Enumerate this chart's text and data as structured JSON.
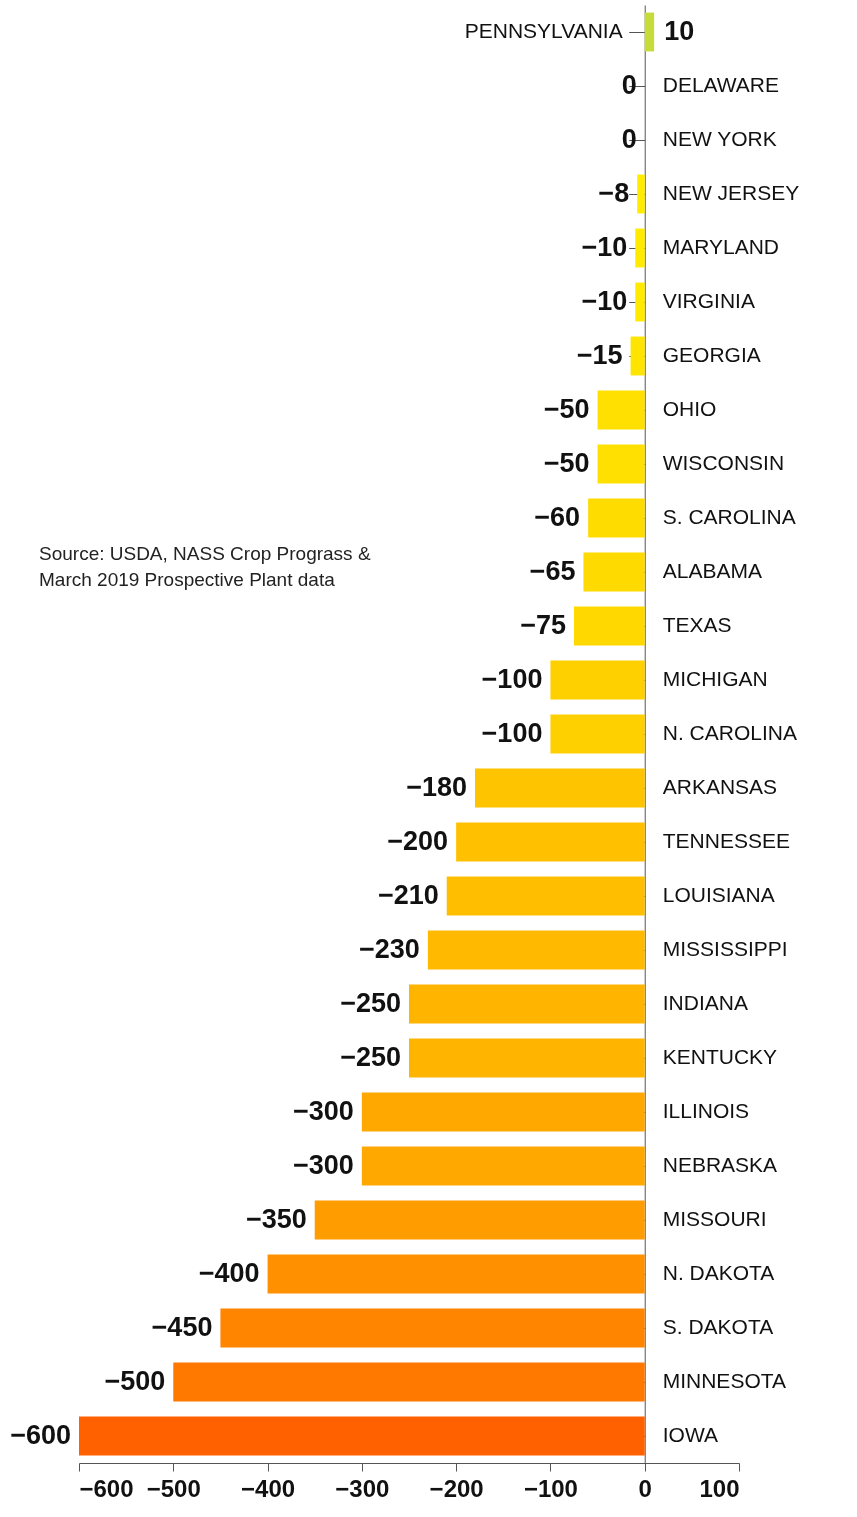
{
  "chart_data": {
    "type": "bar",
    "orientation": "horizontal",
    "categories": [
      "PENNSYLVANIA",
      "DELAWARE",
      "NEW YORK",
      "NEW JERSEY",
      "MARYLAND",
      "VIRGINIA",
      "GEORGIA",
      "OHIO",
      "WISCONSIN",
      "S. CAROLINA",
      "ALABAMA",
      "TEXAS",
      "MICHIGAN",
      "N. CAROLINA",
      "ARKANSAS",
      "TENNESSEE",
      "LOUISIANA",
      "MISSISSIPPI",
      "INDIANA",
      "KENTUCKY",
      "ILLINOIS",
      "NEBRASKA",
      "MISSOURI",
      "N. DAKOTA",
      "S. DAKOTA",
      "MINNESOTA",
      "IOWA"
    ],
    "values": [
      10,
      0,
      0,
      -8,
      -10,
      -10,
      -15,
      -50,
      -50,
      -60,
      -65,
      -75,
      -100,
      -100,
      -180,
      -200,
      -210,
      -230,
      -250,
      -250,
      -300,
      -300,
      -350,
      -400,
      -450,
      -500,
      -600
    ],
    "colors": [
      "#c6dc3a",
      "#fff200",
      "#fff200",
      "#ffec00",
      "#ffea00",
      "#ffea00",
      "#ffe400",
      "#ffe000",
      "#ffe000",
      "#ffdc00",
      "#ffda00",
      "#ffd800",
      "#ffd000",
      "#ffd000",
      "#ffc400",
      "#ffc000",
      "#ffbe00",
      "#ffba00",
      "#ffb400",
      "#ffb400",
      "#ffa800",
      "#ffa800",
      "#ff9c00",
      "#ff9000",
      "#ff8400",
      "#ff7800",
      "#ff6000"
    ],
    "xlim": [
      -600,
      100
    ],
    "xticks": [
      -600,
      -500,
      -400,
      -300,
      -200,
      -100,
      0,
      100
    ],
    "data_labels": true,
    "grid": false,
    "annotations": [
      "Source: USDA, NASS Crop Prograss &\nMarch 2019 Prospective Plant data"
    ]
  }
}
